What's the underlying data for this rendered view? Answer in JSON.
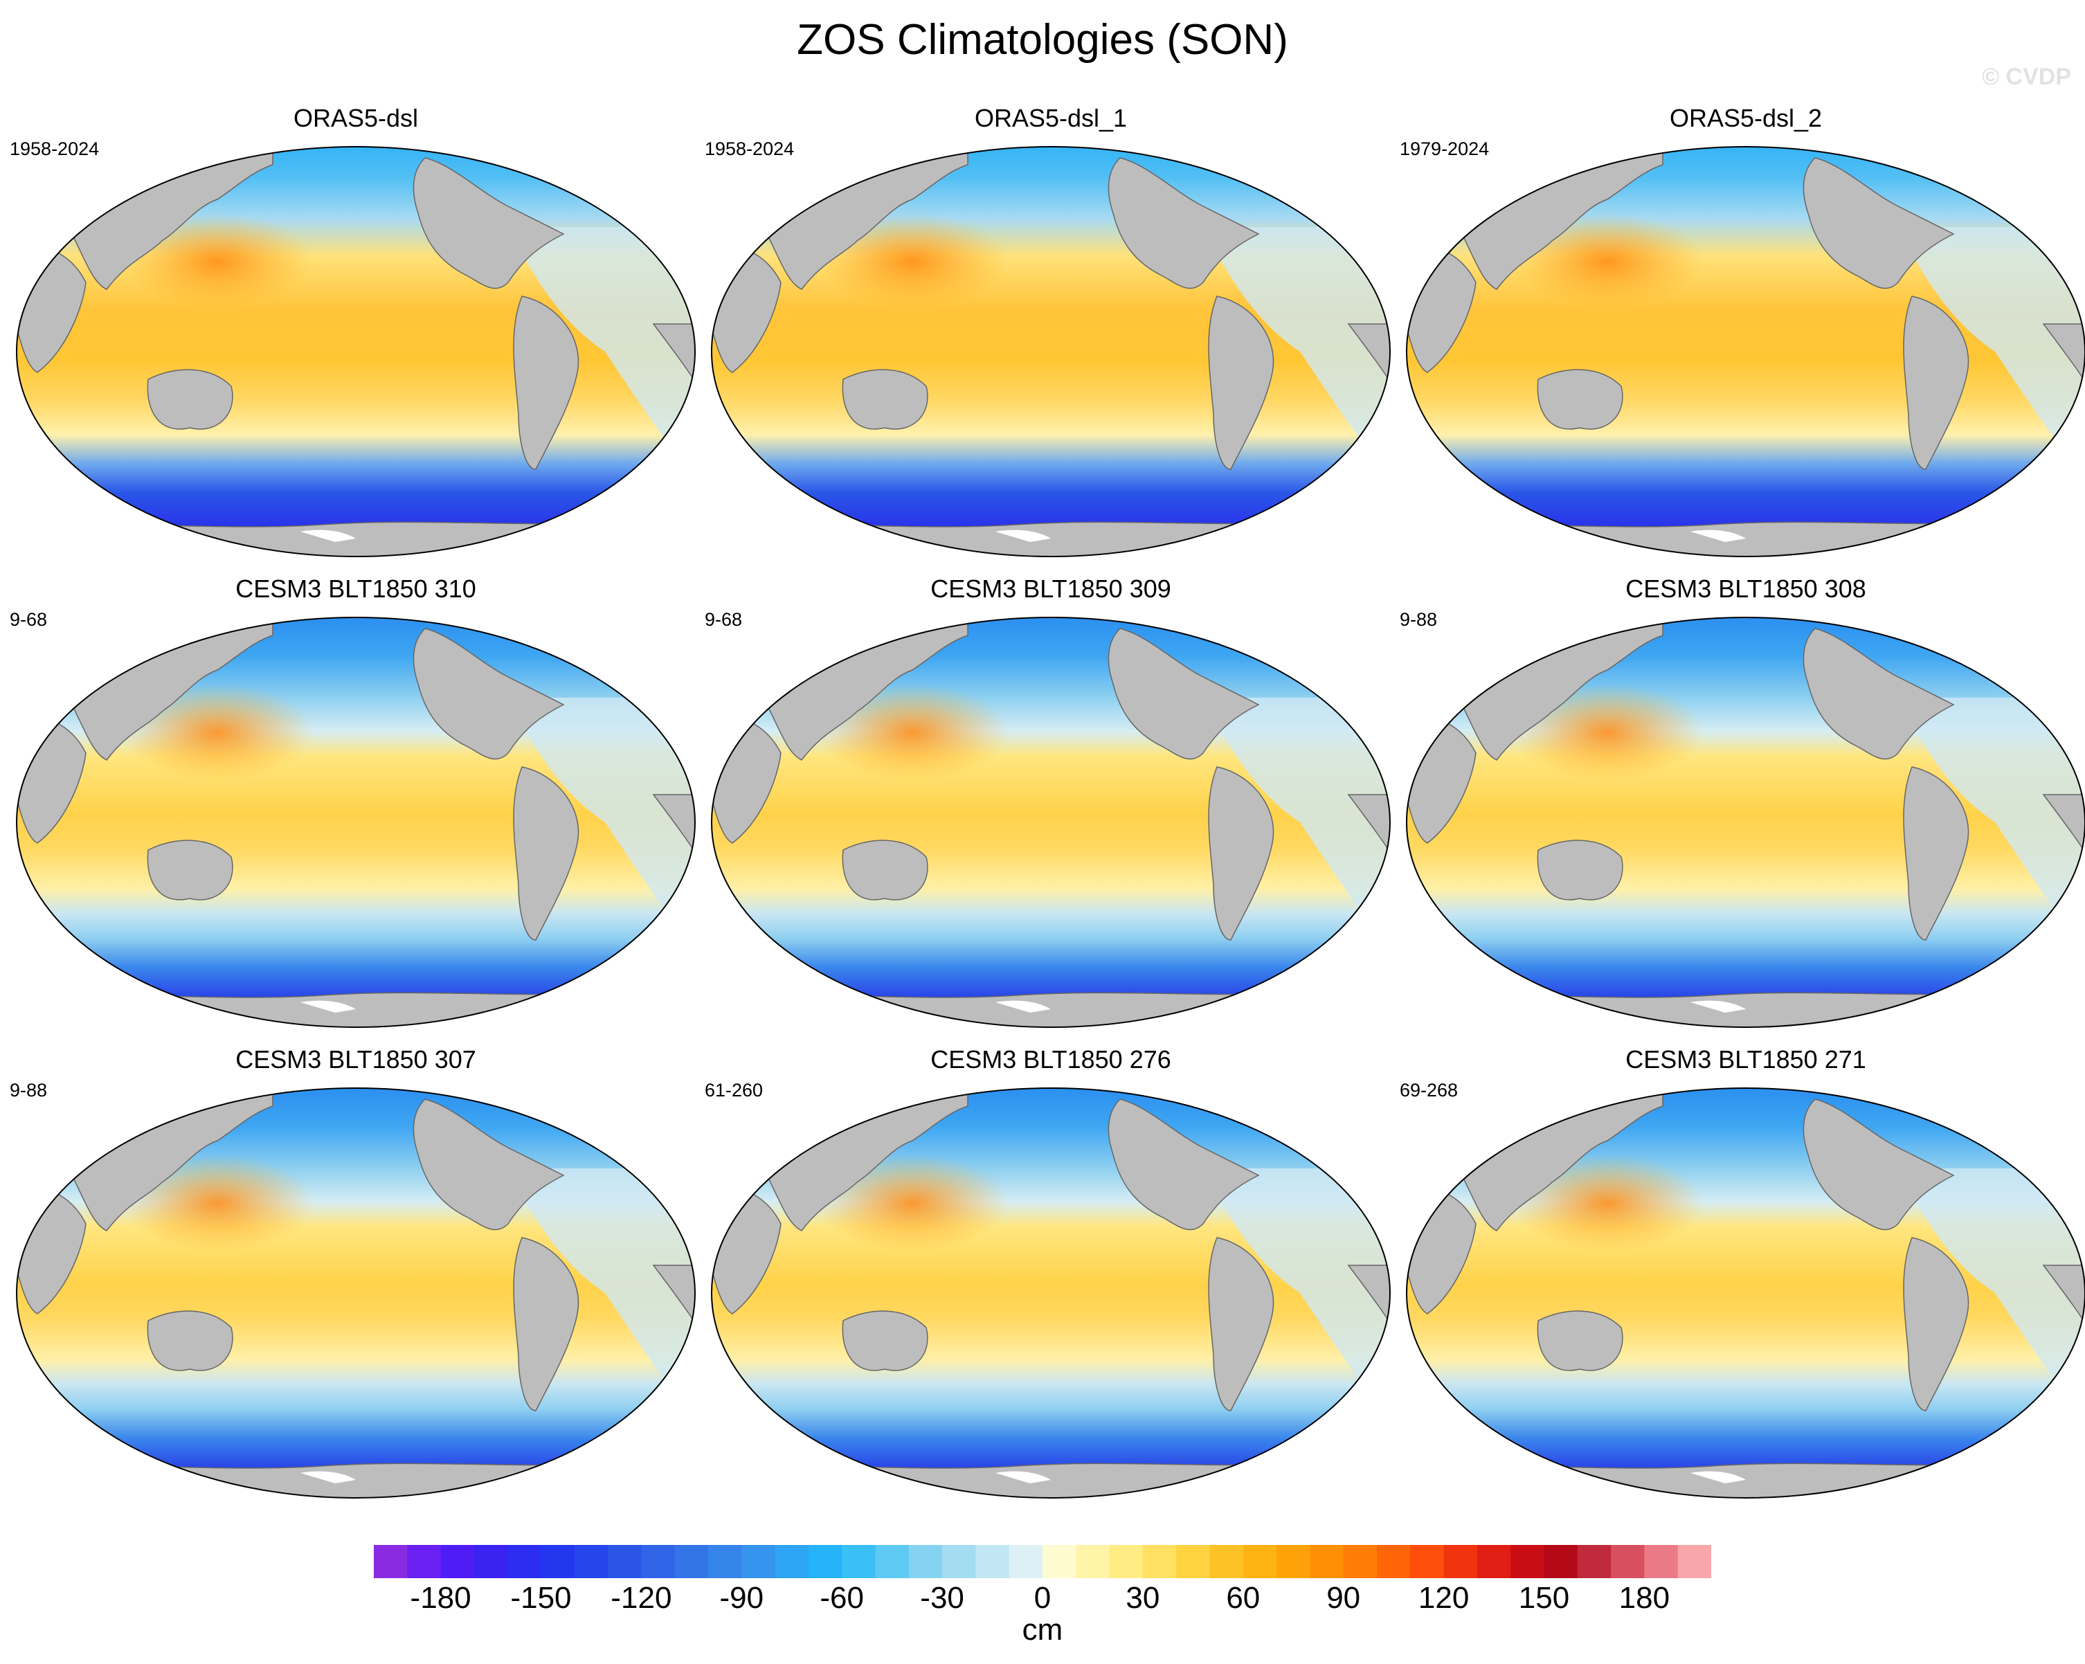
{
  "title": "ZOS Climatologies (SON)",
  "watermark": "© CVDP",
  "panels": [
    {
      "title": "ORAS5-dsl",
      "period": "1958-2024"
    },
    {
      "title": "ORAS5-dsl_1",
      "period": "1958-2024"
    },
    {
      "title": "ORAS5-dsl_2",
      "period": "1979-2024"
    },
    {
      "title": "CESM3 BLT1850 310",
      "period": "9-68"
    },
    {
      "title": "CESM3 BLT1850 309",
      "period": "9-68"
    },
    {
      "title": "CESM3 BLT1850 308",
      "period": "9-88"
    },
    {
      "title": "CESM3 BLT1850 307",
      "period": "9-88"
    },
    {
      "title": "CESM3 BLT1850 276",
      "period": "61-260"
    },
    {
      "title": "CESM3 BLT1850 271",
      "period": "69-268"
    }
  ],
  "colorbar": {
    "unit": "cm",
    "min": -200,
    "max": 200,
    "ticks": [
      "-180",
      "-150",
      "-120",
      "-90",
      "-60",
      "-30",
      "0",
      "30",
      "60",
      "90",
      "120",
      "150",
      "180"
    ],
    "colors": [
      "#8a2be2",
      "#6a20f0",
      "#4f1cf5",
      "#3a22f0",
      "#2b2df0",
      "#2338ee",
      "#2446ea",
      "#2a55e6",
      "#2f64e6",
      "#3374e8",
      "#3584ea",
      "#3594ee",
      "#2ea4f4",
      "#25b3fa",
      "#3abff7",
      "#5ec9f2",
      "#85d3f0",
      "#a4ddf1",
      "#c0e7f3",
      "#dcf0f6",
      "#fffbd0",
      "#fff4a8",
      "#ffec82",
      "#ffe060",
      "#ffd240",
      "#ffc226",
      "#ffb214",
      "#ffa20a",
      "#ff9005",
      "#ff7c05",
      "#ff6608",
      "#ff4e0c",
      "#f03410",
      "#e01e14",
      "#c80e14",
      "#b40a18",
      "#c02a3c",
      "#d85060",
      "#ec7a86",
      "#f8a6aa"
    ]
  },
  "colors": {
    "land": "#bdbdbd",
    "coast": "#666666"
  }
}
